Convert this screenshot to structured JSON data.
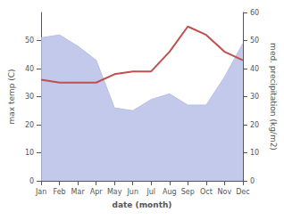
{
  "chart_data": {
    "type": "line",
    "categories": [
      "Jan",
      "Feb",
      "Mar",
      "Apr",
      "May",
      "Jun",
      "Jul",
      "Aug",
      "Sep",
      "Oct",
      "Nov",
      "Dec"
    ],
    "xlabel": "date (month)",
    "ylabel": "max temp (C)",
    "y2label": "med. precipitation (kg/m2)",
    "ylim": [
      0,
      60
    ],
    "yticks": [
      0,
      10,
      20,
      30,
      40,
      50
    ],
    "y2lim": [
      0,
      60
    ],
    "y2ticks": [
      0,
      10,
      20,
      30,
      40,
      50,
      60
    ],
    "grid": false,
    "series": [
      {
        "type": "area",
        "color": "#b8c0e8",
        "axis": "y2",
        "values": [
          51,
          52,
          48,
          43,
          26,
          25,
          29,
          31,
          27,
          27,
          37,
          49
        ]
      },
      {
        "type": "line",
        "color": "#c0504d",
        "values": [
          36,
          35,
          35,
          35,
          38,
          39,
          39,
          46,
          55,
          52,
          46,
          43
        ]
      }
    ]
  }
}
